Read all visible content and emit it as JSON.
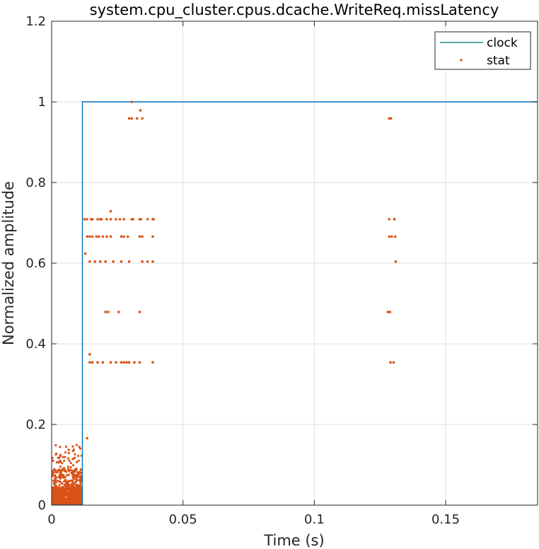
{
  "chart_data": {
    "type": "scatter",
    "title": "system.cpu_cluster.cpus.dcache.WriteReq.missLatency",
    "xlabel": "Time (s)",
    "ylabel": "Normalized amplitude",
    "xlim": [
      0,
      0.185
    ],
    "ylim": [
      0,
      1.2
    ],
    "xticks": [
      0,
      0.05,
      0.1,
      0.15
    ],
    "xtick_labels": [
      "0",
      "0.05",
      "0.1",
      "0.15"
    ],
    "yticks": [
      0,
      0.2,
      0.4,
      0.6,
      0.8,
      1,
      1.2
    ],
    "ytick_labels": [
      "0",
      "0.2",
      "0.4",
      "0.6",
      "0.8",
      "1",
      "1.2"
    ],
    "grid": true,
    "legend_position": "top-right",
    "series": [
      {
        "name": "clock",
        "kind": "line",
        "color": "#0072BD",
        "legend_color": "#1a8a8a",
        "x": [
          0,
          0.0117,
          0.0117,
          0.185
        ],
        "y": [
          0,
          0,
          1,
          1
        ]
      },
      {
        "name": "stat",
        "kind": "points",
        "color": "#D95319",
        "x": [
          0.0125,
          0.0135,
          0.015,
          0.0175,
          0.019,
          0.0225,
          0.026,
          0.0305,
          0.034,
          0.0385,
          0.1285,
          0.1305,
          0.0135,
          0.0145,
          0.0155,
          0.017,
          0.018,
          0.0195,
          0.021,
          0.0225,
          0.0265,
          0.0275,
          0.029,
          0.0335,
          0.0345,
          0.0385,
          0.1285,
          0.1295,
          0.1308,
          0.0145,
          0.0165,
          0.0185,
          0.0205,
          0.0235,
          0.0265,
          0.0295,
          0.0345,
          0.0365,
          0.0385,
          0.131,
          0.0155,
          0.0185,
          0.021,
          0.0245,
          0.0275,
          0.031,
          0.0335,
          0.0365,
          0.0388,
          0.1305,
          0.0128,
          0.0205,
          0.0215,
          0.0255,
          0.0335,
          0.128,
          0.1288,
          0.0145,
          0.0155,
          0.0175,
          0.0195,
          0.0225,
          0.0245,
          0.0265,
          0.0275,
          0.0285,
          0.0295,
          0.0315,
          0.0335,
          0.0385,
          0.129,
          0.1302,
          0.0145,
          0.0225,
          0.0135,
          0.0295,
          0.0305,
          0.0325,
          0.0345,
          0.1285,
          0.1292,
          0.0305,
          0.0338
        ],
        "y": [
          0.709,
          0.709,
          0.709,
          0.709,
          0.709,
          0.709,
          0.709,
          0.709,
          0.709,
          0.709,
          0.709,
          0.709,
          0.666,
          0.666,
          0.666,
          0.666,
          0.666,
          0.666,
          0.666,
          0.666,
          0.666,
          0.666,
          0.666,
          0.666,
          0.666,
          0.666,
          0.666,
          0.666,
          0.666,
          0.604,
          0.604,
          0.604,
          0.604,
          0.604,
          0.604,
          0.604,
          0.604,
          0.604,
          0.604,
          0.604,
          0.709,
          0.709,
          0.709,
          0.709,
          0.709,
          0.709,
          0.709,
          0.709,
          0.709,
          0.709,
          0.624,
          0.479,
          0.479,
          0.479,
          0.479,
          0.479,
          0.479,
          0.354,
          0.354,
          0.354,
          0.354,
          0.354,
          0.354,
          0.354,
          0.354,
          0.354,
          0.354,
          0.354,
          0.354,
          0.354,
          0.354,
          0.354,
          0.374,
          0.729,
          0.166,
          0.959,
          0.959,
          0.959,
          0.959,
          0.959,
          0.959,
          1.0,
          0.979
        ]
      }
    ]
  }
}
